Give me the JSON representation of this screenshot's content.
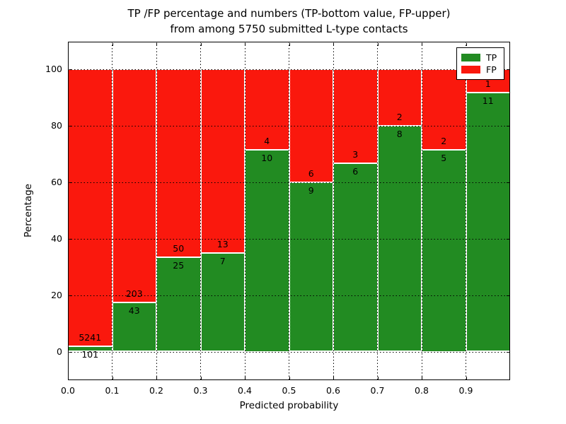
{
  "title": {
    "line1": "TP /FP percentage and numbers (TP-bottom value, FP-upper)",
    "line2": "from among 5750 submitted L-type contacts"
  },
  "axes": {
    "xlabel": "Predicted probability",
    "ylabel": "Percentage",
    "x_tick_labels": [
      "0.0",
      "0.1",
      "0.2",
      "0.3",
      "0.4",
      "0.5",
      "0.6",
      "0.7",
      "0.8",
      "0.9"
    ],
    "y_tick_labels": [
      "0",
      "20",
      "40",
      "60",
      "80",
      "100"
    ],
    "y_tick_values": [
      0,
      20,
      40,
      60,
      80,
      100
    ]
  },
  "legend": {
    "items": [
      {
        "label": "TP",
        "color": "#228b22"
      },
      {
        "label": "FP",
        "color": "#fa180d"
      }
    ]
  },
  "colors": {
    "tp": "#228b22",
    "fp": "#fa180d",
    "grid": "#000000",
    "background": "#ffffff"
  },
  "chart_data": {
    "type": "bar",
    "stacked": true,
    "normalized": "percent",
    "title": "TP /FP percentage and numbers (TP-bottom value, FP-upper) from among 5750 submitted L-type contacts",
    "xlabel": "Predicted probability",
    "ylabel": "Percentage",
    "total_contacts": 5750,
    "bin_width": 0.1,
    "bin_starts": [
      0.0,
      0.1,
      0.2,
      0.3,
      0.4,
      0.5,
      0.6,
      0.7,
      0.8,
      0.9
    ],
    "series": [
      {
        "name": "TP",
        "color": "#228b22",
        "counts": [
          101,
          43,
          25,
          7,
          10,
          9,
          6,
          8,
          5,
          11
        ]
      },
      {
        "name": "FP",
        "color": "#fa180d",
        "counts": [
          5241,
          203,
          50,
          13,
          4,
          6,
          3,
          2,
          2,
          1
        ]
      }
    ],
    "tp_percent": [
      1.9,
      17.5,
      33.3,
      35.0,
      71.4,
      60.0,
      66.7,
      80.0,
      71.4,
      91.7
    ],
    "xlim": [
      0.0,
      1.0
    ],
    "ylim": [
      -10,
      110
    ],
    "grid": true,
    "legend_position": "upper right"
  }
}
